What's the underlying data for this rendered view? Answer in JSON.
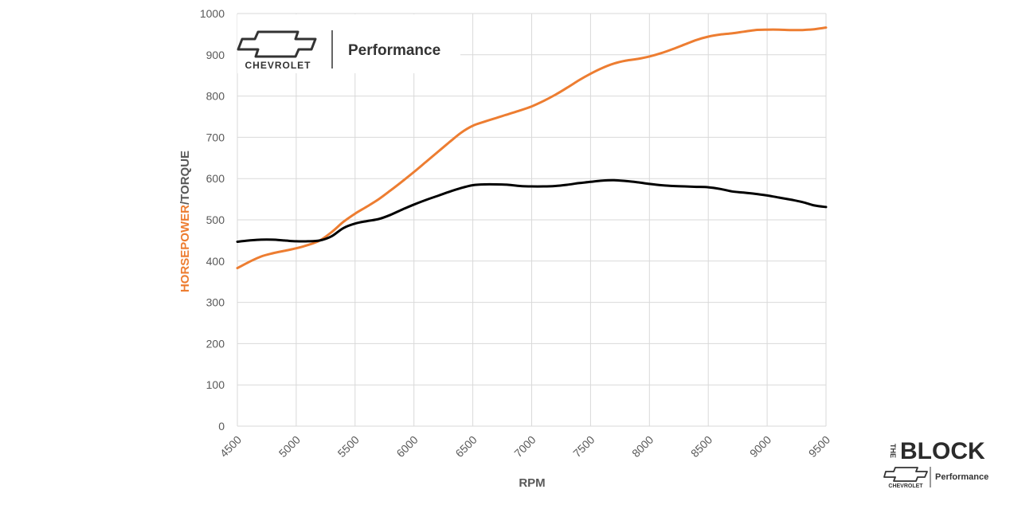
{
  "chart_data": {
    "type": "line",
    "xlabel": "RPM",
    "ylabel_parts": [
      "HORSEPOWER",
      "/TORQUE"
    ],
    "xlim": [
      4500,
      9500
    ],
    "ylim": [
      0,
      1000
    ],
    "x_ticks": [
      4500,
      5000,
      5500,
      6000,
      6500,
      7000,
      7500,
      8000,
      8500,
      9000,
      9500
    ],
    "y_ticks": [
      0,
      100,
      200,
      300,
      400,
      500,
      600,
      700,
      800,
      900,
      1000
    ],
    "grid": true,
    "series": [
      {
        "color": "#ed7d31",
        "points": [
          [
            4500,
            383
          ],
          [
            4600,
            398
          ],
          [
            4700,
            411
          ],
          [
            4800,
            419
          ],
          [
            4900,
            425
          ],
          [
            5000,
            431
          ],
          [
            5100,
            439
          ],
          [
            5200,
            450
          ],
          [
            5300,
            470
          ],
          [
            5400,
            495
          ],
          [
            5500,
            515
          ],
          [
            5600,
            532
          ],
          [
            5700,
            550
          ],
          [
            5800,
            571
          ],
          [
            5900,
            593
          ],
          [
            6000,
            616
          ],
          [
            6100,
            640
          ],
          [
            6200,
            664
          ],
          [
            6300,
            688
          ],
          [
            6400,
            711
          ],
          [
            6500,
            728
          ],
          [
            6600,
            738
          ],
          [
            6700,
            747
          ],
          [
            6800,
            756
          ],
          [
            6900,
            765
          ],
          [
            7000,
            775
          ],
          [
            7100,
            788
          ],
          [
            7200,
            803
          ],
          [
            7300,
            820
          ],
          [
            7400,
            838
          ],
          [
            7500,
            854
          ],
          [
            7600,
            868
          ],
          [
            7700,
            879
          ],
          [
            7800,
            886
          ],
          [
            7900,
            890
          ],
          [
            8000,
            896
          ],
          [
            8100,
            904
          ],
          [
            8200,
            914
          ],
          [
            8300,
            925
          ],
          [
            8400,
            936
          ],
          [
            8500,
            944
          ],
          [
            8600,
            949
          ],
          [
            8700,
            952
          ],
          [
            8800,
            956
          ],
          [
            8900,
            960
          ],
          [
            9000,
            961
          ],
          [
            9100,
            961
          ],
          [
            9200,
            960
          ],
          [
            9300,
            960
          ],
          [
            9400,
            962
          ],
          [
            9500,
            966
          ]
        ]
      },
      {
        "color": "#000000",
        "points": [
          [
            4500,
            447
          ],
          [
            4600,
            450
          ],
          [
            4700,
            452
          ],
          [
            4800,
            452
          ],
          [
            4900,
            450
          ],
          [
            5000,
            448
          ],
          [
            5100,
            448
          ],
          [
            5200,
            450
          ],
          [
            5300,
            460
          ],
          [
            5400,
            480
          ],
          [
            5500,
            491
          ],
          [
            5600,
            497
          ],
          [
            5700,
            502
          ],
          [
            5800,
            512
          ],
          [
            5900,
            525
          ],
          [
            6000,
            537
          ],
          [
            6100,
            548
          ],
          [
            6200,
            558
          ],
          [
            6300,
            568
          ],
          [
            6400,
            577
          ],
          [
            6500,
            584
          ],
          [
            6600,
            586
          ],
          [
            6700,
            586
          ],
          [
            6800,
            585
          ],
          [
            6900,
            582
          ],
          [
            7000,
            581
          ],
          [
            7100,
            581
          ],
          [
            7200,
            582
          ],
          [
            7300,
            585
          ],
          [
            7400,
            589
          ],
          [
            7500,
            592
          ],
          [
            7600,
            595
          ],
          [
            7700,
            596
          ],
          [
            7800,
            594
          ],
          [
            7900,
            591
          ],
          [
            8000,
            587
          ],
          [
            8100,
            584
          ],
          [
            8200,
            582
          ],
          [
            8300,
            581
          ],
          [
            8400,
            580
          ],
          [
            8500,
            579
          ],
          [
            8600,
            575
          ],
          [
            8700,
            569
          ],
          [
            8800,
            566
          ],
          [
            8900,
            563
          ],
          [
            9000,
            559
          ],
          [
            9100,
            554
          ],
          [
            9200,
            549
          ],
          [
            9300,
            543
          ],
          [
            9400,
            535
          ],
          [
            9500,
            531
          ]
        ]
      }
    ]
  },
  "logos": {
    "chart_logo": {
      "brand": "CHEVROLET",
      "tagline": "Performance",
      "icon": "bowtie-icon"
    },
    "corner_logo": {
      "word_small": "THE",
      "word_big": "BLOCK",
      "brand": "CHEVROLET",
      "tagline": "Performance",
      "icon": "bowtie-icon"
    }
  },
  "colors": {
    "horsepower": "#ed7d31",
    "torque": "#000000",
    "axis_text": "#595959",
    "grid": "#d9d9d9"
  }
}
